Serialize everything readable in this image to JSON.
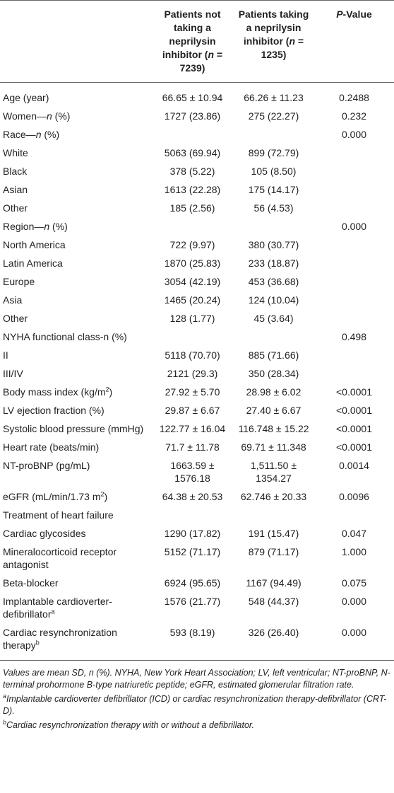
{
  "table": {
    "header": {
      "columns": [
        [
          "Patients not taking a neprilysin inhibitor (",
          {
            "i": "n"
          },
          " = 7239)"
        ],
        [
          "Patients taking a neprilysin inhibitor (",
          {
            "i": "n"
          },
          " = 1235)"
        ],
        [
          {
            "i": "P"
          },
          "-Value"
        ]
      ]
    },
    "rows": [
      [
        [
          "Age (year)"
        ],
        "66.65 ± 10.94",
        "66.26 ± 11.23",
        "0.2488"
      ],
      [
        [
          "Women—",
          {
            "i": "n"
          },
          " (%)"
        ],
        "1727 (23.86)",
        "275 (22.27)",
        "0.232"
      ],
      [
        [
          "Race—",
          {
            "i": "n"
          },
          " (%)"
        ],
        null,
        null,
        "0.000"
      ],
      [
        [
          "White"
        ],
        "5063 (69.94)",
        "899 (72.79)",
        null
      ],
      [
        [
          "Black"
        ],
        "378 (5.22)",
        "105 (8.50)",
        null
      ],
      [
        [
          "Asian"
        ],
        "1613 (22.28)",
        "175 (14.17)",
        null
      ],
      [
        [
          "Other"
        ],
        "185 (2.56)",
        "56 (4.53)",
        null
      ],
      [
        [
          "Region—",
          {
            "i": "n"
          },
          " (%)"
        ],
        null,
        null,
        "0.000"
      ],
      [
        [
          "North America"
        ],
        "722 (9.97)",
        "380 (30.77)",
        null
      ],
      [
        [
          "Latin America"
        ],
        "1870 (25.83)",
        "233 (18.87)",
        null
      ],
      [
        [
          "Europe"
        ],
        "3054 (42.19)",
        "453 (36.68)",
        null
      ],
      [
        [
          "Asia"
        ],
        "1465 (20.24)",
        "124 (10.04)",
        null
      ],
      [
        [
          "Other"
        ],
        "128 (1.77)",
        "45 (3.64)",
        null
      ],
      [
        [
          "NYHA functional class-n (%)"
        ],
        null,
        null,
        "0.498"
      ],
      [
        [
          "II"
        ],
        "5118 (70.70)",
        "885 (71.66)",
        null
      ],
      [
        [
          "III/IV"
        ],
        "2121 (29.3)",
        "350 (28.34)",
        null
      ],
      [
        [
          "Body mass index (kg/m",
          {
            "sup": "2"
          },
          ")"
        ],
        "27.92 ± 5.70",
        "28.98 ± 6.02",
        "<0.0001"
      ],
      [
        [
          "LV ejection fraction (%)"
        ],
        "29.87 ± 6.67",
        "27.40 ± 6.67",
        "<0.0001"
      ],
      [
        [
          "Systolic blood pressure (mmHg)"
        ],
        "122.77 ± 16.04",
        "116.748 ± 15.22",
        "<0.0001"
      ],
      [
        [
          "Heart rate (beats/min)"
        ],
        "71.7 ± 11.78",
        "69.71 ± 11.348",
        "<0.0001"
      ],
      [
        [
          "NT-proBNP (pg/mL)"
        ],
        "1663.59 ± 1576.18",
        "1,511.50 ± 1354.27",
        "0.0014"
      ],
      [
        [
          "eGFR (mL/min/1.73 m",
          {
            "sup": "2"
          },
          ")"
        ],
        "64.38 ± 20.53",
        "62.746 ± 20.33",
        "0.0096"
      ],
      [
        [
          "Treatment of heart failure"
        ],
        null,
        null,
        null
      ],
      [
        [
          "Cardiac glycosides"
        ],
        "1290 (17.82)",
        "191 (15.47)",
        "0.047"
      ],
      [
        [
          "Mineralocorticoid receptor antagonist"
        ],
        "5152 (71.17)",
        "879 (71.17)",
        "1.000"
      ],
      [
        [
          "Beta-blocker"
        ],
        "6924 (95.65)",
        "1167 (94.49)",
        "0.075"
      ],
      [
        [
          "Implantable cardioverter-defibrillator",
          {
            "sup": "a"
          }
        ],
        "1576 (21.77)",
        "548 (44.37)",
        "0.000"
      ],
      [
        [
          "Cardiac resynchronization therapy",
          {
            "sup": "b"
          }
        ],
        "593 (8.19)",
        "326 (26.40)",
        "0.000"
      ]
    ],
    "notes": [
      [
        "Values are mean SD, n (%). NYHA, New York Heart Association; LV, left ventricular; NT-proBNP, N-terminal prohormone B-type natriuretic peptide; eGFR, estimated glomerular filtration rate."
      ],
      [
        {
          "sup": "a"
        },
        "Implantable cardioverter defibrillator (ICD) or cardiac resynchronization therapy-defibrillator (CRT-D)."
      ],
      [
        {
          "sup": "b"
        },
        "Cardiac resynchronization therapy with or without a defibrillator."
      ]
    ]
  }
}
